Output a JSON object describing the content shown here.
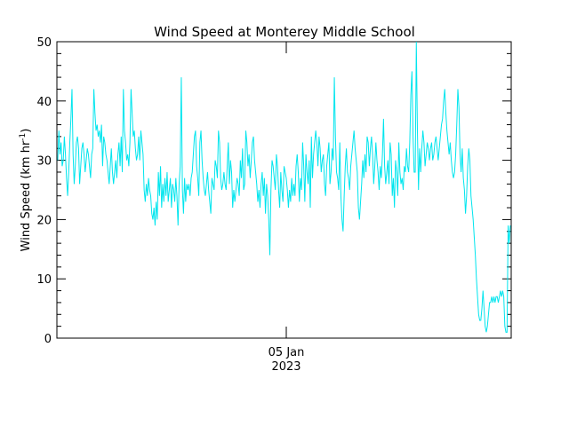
{
  "chart_data": {
    "type": "line",
    "title": "Wind Speed at Monterey Middle School",
    "ylabel_main": "Wind Speed (km hr",
    "ylabel_sup": "-1",
    "ylabel_close": ")",
    "xlabel": "",
    "x_tick_label_line1": "05 Jan",
    "x_tick_label_line2": "2023",
    "y_ticks": [
      "0",
      "10",
      "20",
      "30",
      "40",
      "50"
    ],
    "ylim": [
      0,
      50
    ],
    "grid": false,
    "series_color": "#00e5ee",
    "series": [
      {
        "values": [
          30,
          35,
          31,
          33,
          29,
          30,
          34,
          31,
          27,
          24,
          28,
          33,
          37,
          42,
          31,
          26,
          29,
          33,
          34,
          32,
          26,
          29,
          32,
          33,
          31,
          28,
          30,
          32,
          31,
          29,
          27,
          31,
          32,
          42,
          38,
          35,
          36,
          34,
          35,
          33,
          36,
          29,
          34,
          33,
          31,
          30,
          28,
          26,
          29,
          32,
          28,
          26,
          28,
          30,
          27,
          31,
          33,
          29,
          34,
          28,
          42,
          35,
          33,
          30,
          31,
          29,
          33,
          42,
          38,
          34,
          35,
          32,
          30,
          31,
          34,
          30,
          35,
          33,
          31,
          25,
          23,
          26,
          24,
          27,
          25,
          24,
          21,
          20,
          22,
          19,
          23,
          20,
          28,
          24,
          29,
          22,
          26,
          23,
          27,
          24,
          28,
          23,
          25,
          27,
          22,
          26,
          25,
          23,
          27,
          24,
          19,
          26,
          29,
          44,
          25,
          21,
          27,
          23,
          26,
          25,
          26,
          24,
          27,
          28,
          31,
          34,
          35,
          29,
          27,
          24,
          33,
          35,
          30,
          27,
          25,
          24,
          26,
          28,
          25,
          23,
          21,
          27,
          26,
          25,
          30,
          29,
          27,
          35,
          33,
          27,
          25,
          26,
          28,
          26,
          25,
          29,
          33,
          26,
          30,
          28,
          22,
          25,
          23,
          25,
          27,
          26,
          24,
          30,
          27,
          32,
          25,
          26,
          35,
          33,
          29,
          31,
          27,
          30,
          33,
          34,
          30,
          28,
          26,
          23,
          25,
          22,
          26,
          28,
          24,
          27,
          21,
          26,
          24,
          20,
          14,
          25,
          30,
          29,
          27,
          25,
          31,
          29,
          25,
          22,
          28,
          25,
          23,
          29,
          28,
          27,
          25,
          22,
          25,
          23,
          27,
          24,
          26,
          24,
          29,
          31,
          28,
          23,
          27,
          25,
          33,
          29,
          23,
          31,
          28,
          26,
          30,
          22,
          34,
          27,
          31,
          33,
          35,
          33,
          29,
          34,
          32,
          28,
          30,
          31,
          26,
          24,
          29,
          31,
          33,
          26,
          28,
          32,
          30,
          44,
          34,
          28,
          27,
          25,
          33,
          24,
          20,
          18,
          24,
          29,
          32,
          28,
          27,
          25,
          29,
          31,
          33,
          35,
          32,
          30,
          28,
          22,
          20,
          23,
          26,
          30,
          27,
          31,
          28,
          34,
          33,
          29,
          32,
          34,
          31,
          26,
          29,
          33,
          30,
          28,
          25,
          29,
          27,
          31,
          37,
          29,
          26,
          28,
          30,
          26,
          33,
          31,
          24,
          27,
          22,
          30,
          28,
          24,
          33,
          28,
          26,
          27,
          25,
          29,
          28,
          32,
          29,
          28,
          33,
          41,
          45,
          34,
          28,
          28,
          50,
          35,
          25,
          32,
          28,
          32,
          35,
          33,
          29,
          31,
          33,
          32,
          30,
          32,
          33,
          30,
          31,
          33,
          34,
          32,
          30,
          32,
          34,
          36,
          37,
          40,
          42,
          38,
          35,
          33,
          31,
          33,
          30,
          28,
          27,
          28,
          31,
          36,
          42,
          39,
          31,
          28,
          32,
          27,
          25,
          21,
          24,
          29,
          32,
          30,
          24,
          22,
          20,
          17,
          14,
          10,
          7,
          4,
          3,
          3,
          5,
          8,
          5,
          2,
          1,
          2,
          4,
          6,
          6,
          7,
          6,
          7,
          6,
          7,
          7,
          6,
          7,
          8,
          7,
          8,
          7,
          2,
          1,
          1,
          19,
          16,
          19
        ]
      }
    ]
  }
}
